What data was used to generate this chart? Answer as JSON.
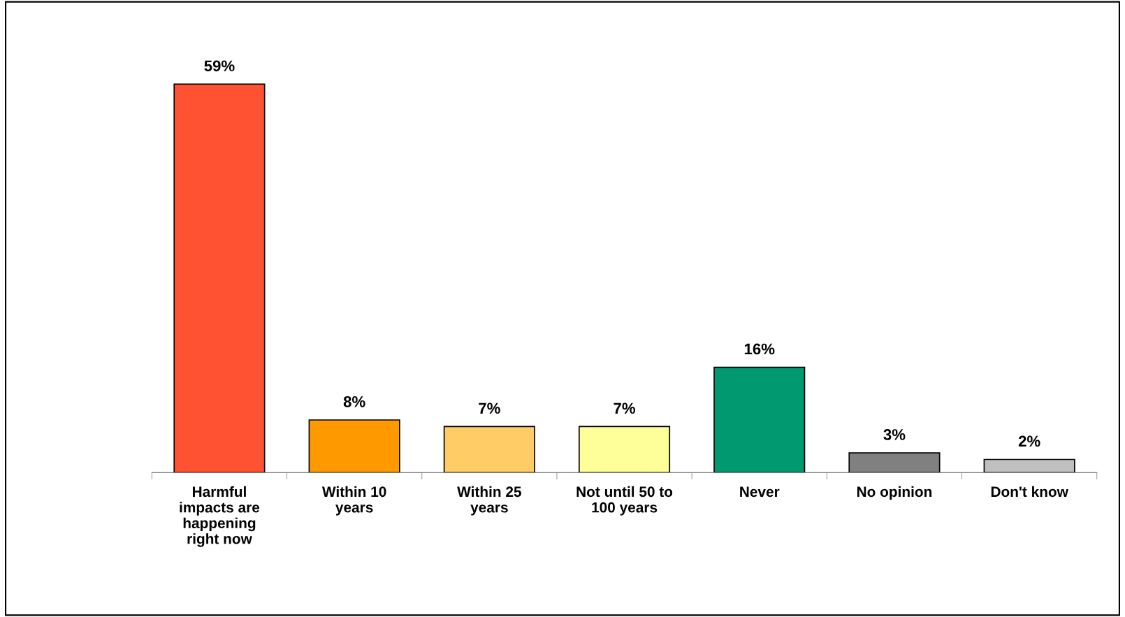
{
  "chart_data": {
    "type": "bar",
    "categories": [
      "Harmful\nimpacts are\nhappening\nright now",
      "Within 10\nyears",
      "Within 25\nyears",
      "Not until 50 to\n100 years",
      "Never",
      "No opinion",
      "Don't know"
    ],
    "values": [
      59,
      8,
      7,
      7,
      16,
      3,
      2
    ],
    "colors": [
      "#ff5233",
      "#ff9900",
      "#ffcc66",
      "#ffff99",
      "#009970",
      "#808080",
      "#c0c0c0"
    ],
    "value_labels": [
      "59%",
      "8%",
      "7%",
      "7%",
      "16%",
      "3%",
      "2%"
    ],
    "grid": false,
    "legend": false
  }
}
